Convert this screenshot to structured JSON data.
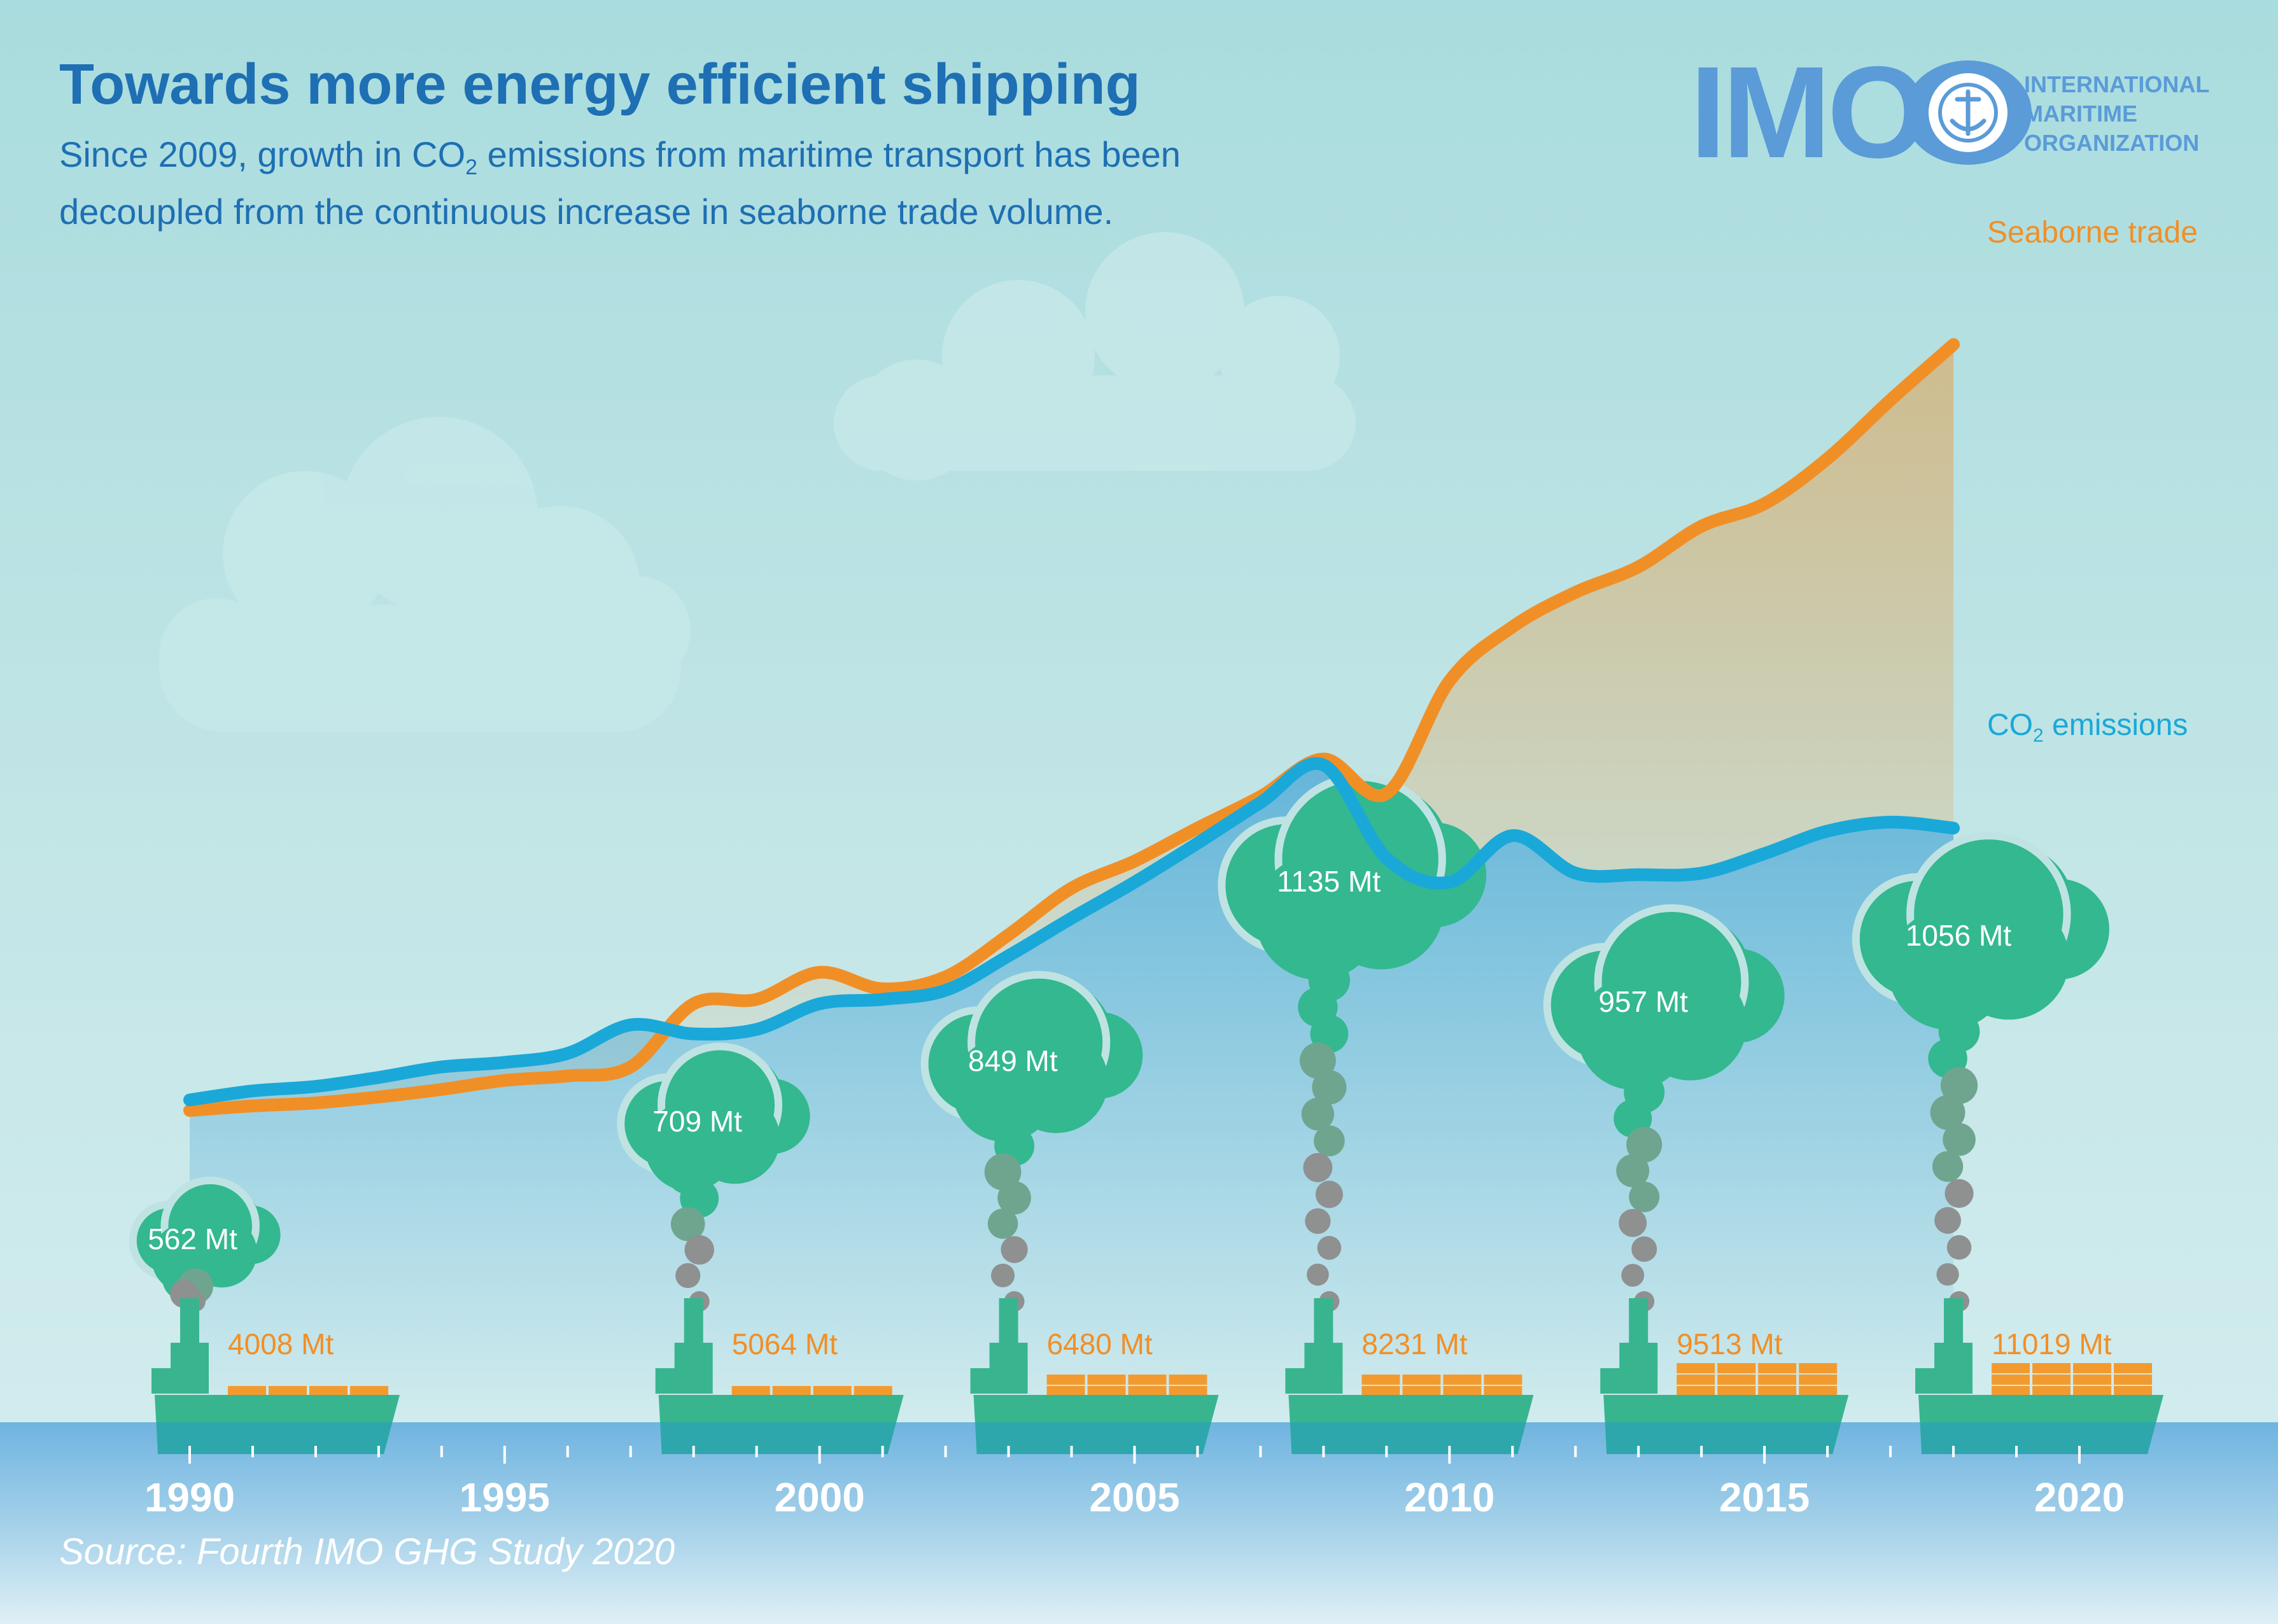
{
  "title": "Towards more energy efficient shipping",
  "subtitle_line1_pre": "Since 2009, growth in CO",
  "subtitle_line1_sub": "2",
  "subtitle_line1_post": " emissions from maritime transport has been",
  "subtitle_line2": "decoupled from the continuous increase in seaborne trade volume.",
  "source": "Source: Fourth IMO GHG Study 2020",
  "logo": {
    "wordmark": "IMO",
    "org_line1": "INTERNATIONAL",
    "org_line2": "MARITIME",
    "org_line3": "ORGANIZATION"
  },
  "colors": {
    "trade": "#f18f27",
    "co2": "#1aa8d8",
    "cloud": "#33b890",
    "ship_hull": "#38b58f",
    "cargo": "#f39a2f",
    "sea": "#6fb4e0",
    "sky_top": "#a9dcde",
    "title": "#1e6fb3"
  },
  "chart_data": {
    "type": "line",
    "title": "Towards more energy efficient shipping",
    "xlim": [
      1990,
      2020
    ],
    "x_ticks": [
      "1990",
      "1995",
      "2000",
      "2005",
      "2010",
      "2015",
      "2020"
    ],
    "series": [
      {
        "name": "Seaborne trade",
        "points": [
          [
            1990,
            0
          ],
          [
            1991,
            0.3
          ],
          [
            1992,
            0.5
          ],
          [
            1993,
            0.9
          ],
          [
            1994,
            1.4
          ],
          [
            1995,
            2
          ],
          [
            1996,
            2.3
          ],
          [
            1997,
            2.9
          ],
          [
            1998,
            7.1
          ],
          [
            1999,
            7.4
          ],
          [
            2000,
            9.2
          ],
          [
            2001,
            8.1
          ],
          [
            2002,
            8.9
          ],
          [
            2003,
            11.7
          ],
          [
            2004,
            14.8
          ],
          [
            2005,
            16.6
          ],
          [
            2006,
            18.8
          ],
          [
            2007,
            20.9
          ],
          [
            2008,
            23.4
          ],
          [
            2009,
            21.1
          ],
          [
            2010,
            28.6
          ],
          [
            2011,
            32.2
          ],
          [
            2012,
            34.5
          ],
          [
            2013,
            36.2
          ],
          [
            2014,
            38.9
          ],
          [
            2015,
            40.4
          ],
          [
            2016,
            43.4
          ],
          [
            2017,
            47.3
          ],
          [
            2018,
            51
          ]
        ],
        "value_labels": [
          {
            "year": 1990,
            "label": "4008 Mt"
          },
          {
            "year": 1998,
            "label": "5064 Mt"
          },
          {
            "year": 2003,
            "label": "6480 Mt"
          },
          {
            "year": 2008,
            "label": "8231 Mt"
          },
          {
            "year": 2013,
            "label": "9513 Mt"
          },
          {
            "year": 2018,
            "label": "11019 Mt"
          }
        ]
      },
      {
        "name": "CO2 emissions",
        "name_base": "CO",
        "name_sub": "2",
        "name_post": " emissions",
        "points": [
          [
            1990,
            0.7
          ],
          [
            1991,
            1.3
          ],
          [
            1992,
            1.6
          ],
          [
            1993,
            2.2
          ],
          [
            1994,
            2.9
          ],
          [
            1995,
            3.2
          ],
          [
            1996,
            3.8
          ],
          [
            1997,
            5.7
          ],
          [
            1998,
            5.1
          ],
          [
            1999,
            5.4
          ],
          [
            2000,
            7.1
          ],
          [
            2001,
            7.4
          ],
          [
            2002,
            8
          ],
          [
            2003,
            10.3
          ],
          [
            2004,
            12.8
          ],
          [
            2005,
            15.2
          ],
          [
            2006,
            17.8
          ],
          [
            2007,
            20.5
          ],
          [
            2008,
            23
          ],
          [
            2009,
            16.8
          ],
          [
            2010,
            15.2
          ],
          [
            2011,
            18.3
          ],
          [
            2012,
            15.8
          ],
          [
            2013,
            15.7
          ],
          [
            2014,
            15.8
          ],
          [
            2015,
            17.1
          ],
          [
            2016,
            18.6
          ],
          [
            2017,
            19.2
          ],
          [
            2018,
            18.8
          ]
        ],
        "value_labels": [
          {
            "year": 1990,
            "label": "562 Mt"
          },
          {
            "year": 1998,
            "label": "709 Mt"
          },
          {
            "year": 2003,
            "label": "849 Mt"
          },
          {
            "year": 2008,
            "label": "1135 Mt"
          },
          {
            "year": 2013,
            "label": "957 Mt"
          },
          {
            "year": 2018,
            "label": "1056 Mt"
          }
        ]
      }
    ],
    "grid": false,
    "legend": "inline labels at right end of lines"
  }
}
